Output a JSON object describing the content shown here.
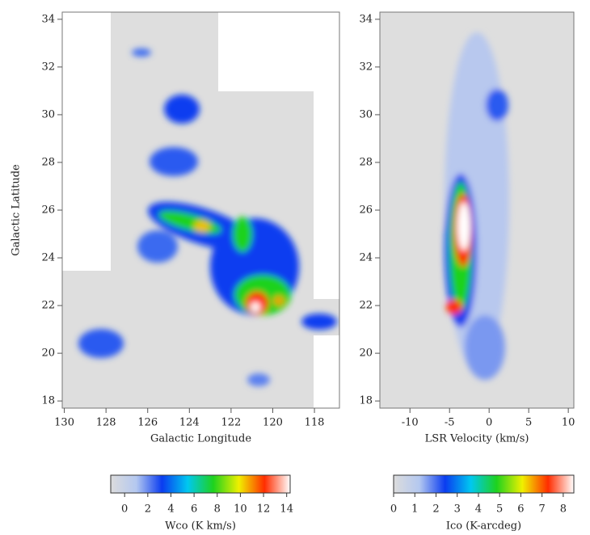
{
  "chart_data": [
    {
      "type": "heatmap",
      "xlabel": "Galactic Longitude",
      "ylabel": "Galactic Latitude",
      "xlim": [
        130.1,
        116.8
      ],
      "ylim": [
        17.7,
        34.3
      ],
      "xticks": [
        130,
        128,
        126,
        124,
        122,
        120,
        118
      ],
      "yticks": [
        18,
        20,
        22,
        24,
        26,
        28,
        30,
        32,
        34
      ],
      "colormap": [
        "#dcdcdc",
        "#b4c8f0",
        "#0a3cf0",
        "#00c8f0",
        "#1ed21e",
        "#f0f000",
        "#ff2d00",
        "#ffffff"
      ],
      "colorbar": {
        "label": "Wco (K km/s)",
        "lim": [
          -1.2,
          14.3
        ],
        "ticks": [
          0,
          2,
          4,
          6,
          8,
          10,
          12,
          14
        ]
      }
    },
    {
      "type": "heatmap",
      "xlabel": "LSR Velocity (km/s)",
      "xlim": [
        -13.8,
        10.7
      ],
      "ylim": [
        17.7,
        34.3
      ],
      "xticks": [
        -10,
        -5,
        0,
        5,
        10
      ],
      "yticks": [
        18,
        20,
        22,
        24,
        26,
        28,
        30,
        32,
        34
      ],
      "colormap": [
        "#dcdcdc",
        "#b4c8f0",
        "#0a3cf0",
        "#00c8f0",
        "#1ed21e",
        "#f0f000",
        "#ff2d00",
        "#ffffff"
      ],
      "colorbar": {
        "label": "Ico (K-arcdeg)",
        "lim": [
          0,
          8.5
        ],
        "ticks": [
          0,
          1,
          2,
          3,
          4,
          5,
          6,
          7,
          8
        ]
      }
    }
  ]
}
